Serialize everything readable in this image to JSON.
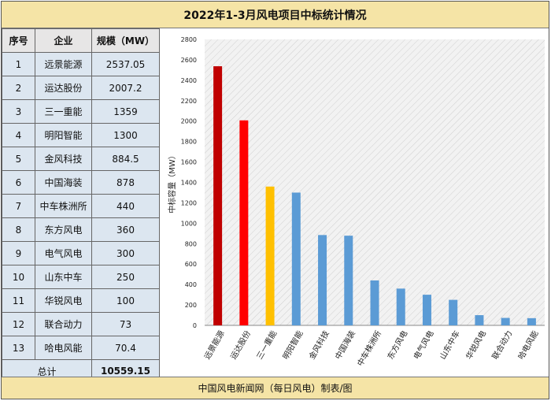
{
  "title": "2022年1-3月风电项目中标统计情况",
  "footer": "中国风电新闻网（每日风电）制表/图",
  "table": {
    "headers": [
      "序号",
      "企业",
      "规模（MW）"
    ],
    "rows": [
      {
        "no": "1",
        "company": "远景能源",
        "value": "2537.05"
      },
      {
        "no": "2",
        "company": "运达股份",
        "value": "2007.2"
      },
      {
        "no": "3",
        "company": "三一重能",
        "value": "1359"
      },
      {
        "no": "4",
        "company": "明阳智能",
        "value": "1300"
      },
      {
        "no": "5",
        "company": "金风科技",
        "value": "884.5"
      },
      {
        "no": "6",
        "company": "中国海装",
        "value": "878"
      },
      {
        "no": "7",
        "company": "中车株洲所",
        "value": "440"
      },
      {
        "no": "8",
        "company": "东方风电",
        "value": "360"
      },
      {
        "no": "9",
        "company": "电气风电",
        "value": "300"
      },
      {
        "no": "10",
        "company": "山东中车",
        "value": "250"
      },
      {
        "no": "11",
        "company": "华锐风电",
        "value": "100"
      },
      {
        "no": "12",
        "company": "联合动力",
        "value": "73"
      },
      {
        "no": "13",
        "company": "哈电风能",
        "value": "70.4"
      }
    ],
    "total_label": "总计",
    "total_value": "10559.15"
  },
  "chart_data": {
    "type": "bar",
    "categories": [
      "远景能源",
      "运达股份",
      "三一重能",
      "明阳智能",
      "金风科技",
      "中国海装",
      "中车株洲所",
      "东方风电",
      "电气风电",
      "山东中车",
      "华锐风电",
      "联合动力",
      "哈电风能"
    ],
    "values": [
      2537.05,
      2007.2,
      1359,
      1300,
      884.5,
      878,
      440,
      360,
      300,
      250,
      100,
      73,
      70.4
    ],
    "colors": [
      "#c00000",
      "#ff0000",
      "#ffc000",
      "#5b9bd5",
      "#5b9bd5",
      "#5b9bd5",
      "#5b9bd5",
      "#5b9bd5",
      "#5b9bd5",
      "#5b9bd5",
      "#5b9bd5",
      "#5b9bd5",
      "#5b9bd5"
    ],
    "ylabel": "中标容量（MW）",
    "ylim": [
      0,
      2800
    ],
    "yticks": [
      0,
      200,
      400,
      600,
      800,
      1000,
      1200,
      1400,
      1600,
      1800,
      2000,
      2200,
      2400,
      2600,
      2800
    ],
    "grid": "diagonal hatch background"
  }
}
